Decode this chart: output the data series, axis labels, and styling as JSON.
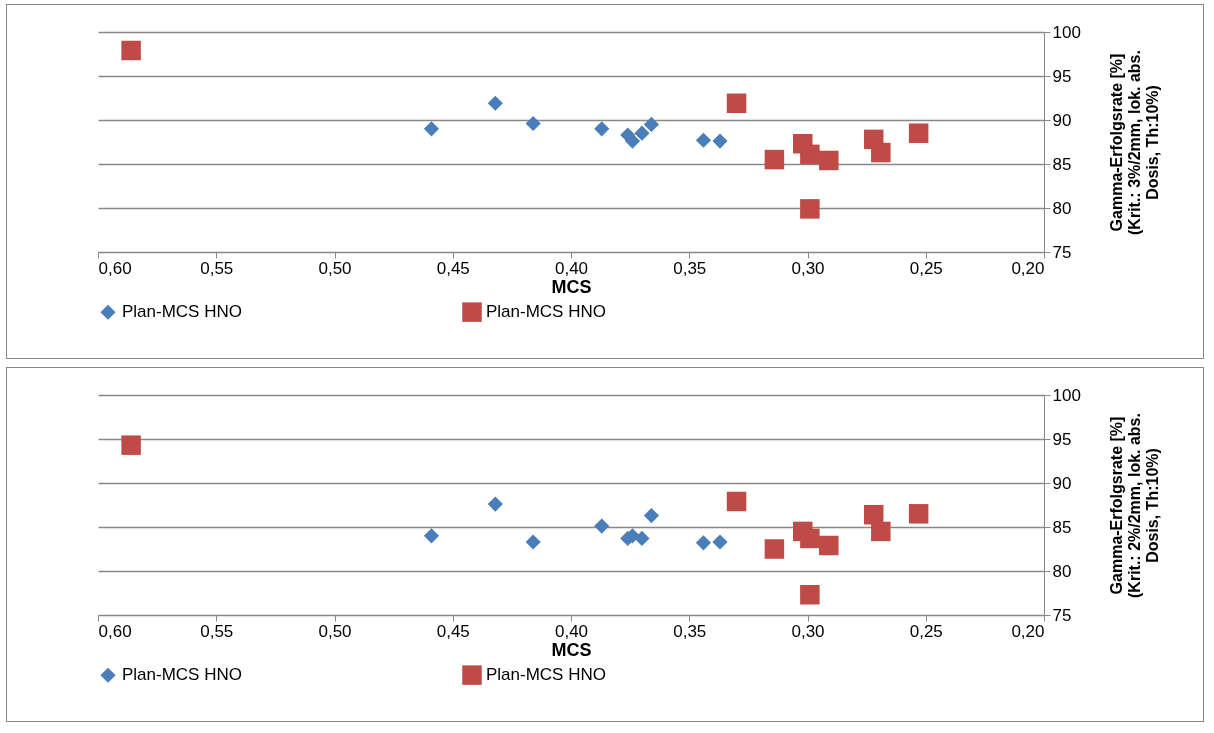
{
  "chart_data": [
    {
      "type": "scatter",
      "xlabel": "MCS",
      "ylabel": "Gamma-Erfolgsrate [%]\n(Krit.: 3%/2mm, lok. abs.\nDosis, Th:10%)",
      "xlim": [
        0.6,
        0.2
      ],
      "xticks": [
        {
          "value": 0.6,
          "label": "0,60"
        },
        {
          "value": 0.55,
          "label": "0,55"
        },
        {
          "value": 0.5,
          "label": "0,50"
        },
        {
          "value": 0.45,
          "label": "0,45"
        },
        {
          "value": 0.4,
          "label": "0,40"
        },
        {
          "value": 0.35,
          "label": "0,35"
        },
        {
          "value": 0.3,
          "label": "0,30"
        },
        {
          "value": 0.25,
          "label": "0,25"
        },
        {
          "value": 0.2,
          "label": "0,20"
        }
      ],
      "ylim": [
        75,
        100
      ],
      "yticks": [
        75,
        80,
        85,
        90,
        95,
        100
      ],
      "grid": "y",
      "legend": "bottom",
      "series": [
        {
          "name": "Plan-MCS HNO",
          "color": "#4a7ebb",
          "marker": "diamond",
          "x": [
            0.459,
            0.432,
            0.416,
            0.387,
            0.376,
            0.374,
            0.37,
            0.366,
            0.344,
            0.337
          ],
          "values": [
            89.0,
            91.9,
            89.6,
            89.0,
            88.3,
            87.6,
            88.5,
            89.5,
            87.7,
            87.6
          ]
        },
        {
          "name": "Plan-MCS HNO",
          "color": "#be4b48",
          "marker": "square",
          "x": [
            0.586,
            0.33,
            0.314,
            0.302,
            0.299,
            0.291,
            0.299,
            0.272,
            0.269,
            0.253
          ],
          "values": [
            97.9,
            91.9,
            85.5,
            87.3,
            86.1,
            85.4,
            79.9,
            87.8,
            86.3,
            88.5
          ]
        }
      ]
    },
    {
      "type": "scatter",
      "xlabel": "MCS",
      "ylabel": "Gamma-Erfolgsrate [%]\n(Krit.: 2%/2mm, lok. abs.\nDosis, Th:10%)",
      "xlim": [
        0.6,
        0.2
      ],
      "xticks": [
        {
          "value": 0.6,
          "label": "0,60"
        },
        {
          "value": 0.55,
          "label": "0,55"
        },
        {
          "value": 0.5,
          "label": "0,50"
        },
        {
          "value": 0.45,
          "label": "0,45"
        },
        {
          "value": 0.4,
          "label": "0,40"
        },
        {
          "value": 0.35,
          "label": "0,35"
        },
        {
          "value": 0.3,
          "label": "0,30"
        },
        {
          "value": 0.25,
          "label": "0,25"
        },
        {
          "value": 0.2,
          "label": "0,20"
        }
      ],
      "ylim": [
        75,
        100
      ],
      "yticks": [
        75,
        80,
        85,
        90,
        95,
        100
      ],
      "grid": "y",
      "legend": "bottom",
      "series": [
        {
          "name": "Plan-MCS HNO",
          "color": "#4a7ebb",
          "marker": "diamond",
          "x": [
            0.459,
            0.432,
            0.416,
            0.387,
            0.376,
            0.374,
            0.37,
            0.366,
            0.344,
            0.337
          ],
          "values": [
            84.0,
            87.6,
            83.3,
            85.1,
            83.7,
            84.0,
            83.7,
            86.3,
            83.2,
            83.3
          ]
        },
        {
          "name": "Plan-MCS HNO",
          "color": "#be4b48",
          "marker": "square",
          "x": [
            0.586,
            0.33,
            0.314,
            0.302,
            0.299,
            0.291,
            0.299,
            0.272,
            0.269,
            0.253
          ],
          "values": [
            94.3,
            87.9,
            82.5,
            84.5,
            83.7,
            82.9,
            77.3,
            86.4,
            84.5,
            86.5
          ]
        }
      ]
    }
  ]
}
